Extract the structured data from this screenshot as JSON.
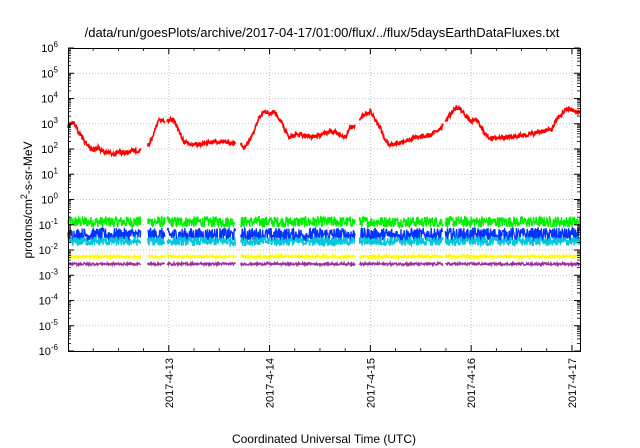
{
  "chart_data": {
    "type": "line",
    "title": "/data/run/goesPlots/archive/2017-04-17/01:00/flux/../flux/5daysEarthDataFluxes.txt",
    "xlabel": "Coordinated Universal Time (UTC)",
    "ylabel_parts": [
      "protons/cm",
      "2",
      "-s-sr-MeV"
    ],
    "y_scale": "log",
    "ylim": [
      1e-06,
      1000000.0
    ],
    "xlim_days": [
      12.0,
      17.08
    ],
    "grid": true,
    "x_tick_labels": [
      {
        "label": "2017-4-13",
        "day": 13
      },
      {
        "label": "2017-4-14",
        "day": 14
      },
      {
        "label": "2017-4-15",
        "day": 15
      },
      {
        "label": "2017-4-16",
        "day": 16
      },
      {
        "label": "2017-4-17",
        "day": 17
      }
    ],
    "y_ticks": [
      {
        "exp": -6,
        "label_base": "10",
        "label_exp": "-6"
      },
      {
        "exp": -5,
        "label_base": "10",
        "label_exp": "-5"
      },
      {
        "exp": -4,
        "label_base": "10",
        "label_exp": "-4"
      },
      {
        "exp": -3,
        "label_base": "10",
        "label_exp": "-3"
      },
      {
        "exp": -2,
        "label_base": "10",
        "label_exp": "-2"
      },
      {
        "exp": -1,
        "label_base": "10",
        "label_exp": "-1"
      },
      {
        "exp": 0,
        "label_base": "10",
        "label_exp": "0"
      },
      {
        "exp": 1,
        "label_base": "10",
        "label_exp": "1"
      },
      {
        "exp": 2,
        "label_base": "10",
        "label_exp": "2"
      },
      {
        "exp": 3,
        "label_base": "10",
        "label_exp": "3"
      },
      {
        "exp": 4,
        "label_base": "10",
        "label_exp": "4"
      },
      {
        "exp": 5,
        "label_base": "10",
        "label_exp": "5"
      },
      {
        "exp": 6,
        "label_base": "10",
        "label_exp": "6"
      }
    ],
    "data_gaps_days": [
      [
        12.72,
        12.79
      ],
      [
        12.96,
        12.98
      ],
      [
        13.66,
        13.71
      ],
      [
        14.85,
        14.89
      ],
      [
        15.72,
        15.74
      ]
    ],
    "series": [
      {
        "color": "#ff0000",
        "x": [
          12.0,
          12.05,
          12.1,
          12.15,
          12.2,
          12.25,
          12.3,
          12.35,
          12.4,
          12.45,
          12.5,
          12.55,
          12.6,
          12.65,
          12.7,
          12.8,
          12.85,
          12.9,
          12.95,
          13.0,
          13.05,
          13.1,
          13.15,
          13.2,
          13.3,
          13.4,
          13.5,
          13.6,
          13.65,
          13.72,
          13.75,
          13.8,
          13.85,
          13.9,
          13.95,
          14.0,
          14.05,
          14.1,
          14.15,
          14.2,
          14.3,
          14.4,
          14.5,
          14.6,
          14.7,
          14.75,
          14.8,
          14.84,
          14.9,
          14.95,
          15.0,
          15.05,
          15.1,
          15.15,
          15.2,
          15.3,
          15.4,
          15.5,
          15.6,
          15.7,
          15.75,
          15.8,
          15.85,
          15.9,
          15.95,
          16.0,
          16.05,
          16.1,
          16.15,
          16.2,
          16.3,
          16.4,
          16.5,
          16.6,
          16.7,
          16.8,
          16.85,
          16.9,
          16.95,
          17.0,
          17.05,
          17.08
        ],
        "y": [
          800,
          1200,
          500,
          250,
          120,
          90,
          110,
          80,
          70,
          60,
          80,
          70,
          75,
          90,
          85,
          150,
          400,
          1500,
          1200,
          1300,
          1500,
          500,
          200,
          150,
          150,
          180,
          200,
          180,
          170,
          150,
          120,
          200,
          600,
          2000,
          3500,
          2500,
          3000,
          1500,
          600,
          300,
          400,
          300,
          350,
          500,
          400,
          300,
          700,
          800,
          1800,
          2500,
          3000,
          1500,
          700,
          200,
          150,
          180,
          250,
          300,
          350,
          700,
          1500,
          2500,
          4500,
          3500,
          2000,
          1200,
          1500,
          700,
          350,
          250,
          300,
          300,
          350,
          400,
          500,
          600,
          1500,
          2500,
          4000,
          3500,
          2800,
          3000
        ]
      },
      {
        "color": "#00ee00",
        "level": 0.13
      },
      {
        "color": "#0033ff",
        "level": 0.04
      },
      {
        "color": "#00c8d8",
        "level": 0.022
      },
      {
        "color": "#ffff00",
        "level": 0.0055
      },
      {
        "color": "#993399",
        "level": 0.0028
      }
    ]
  }
}
